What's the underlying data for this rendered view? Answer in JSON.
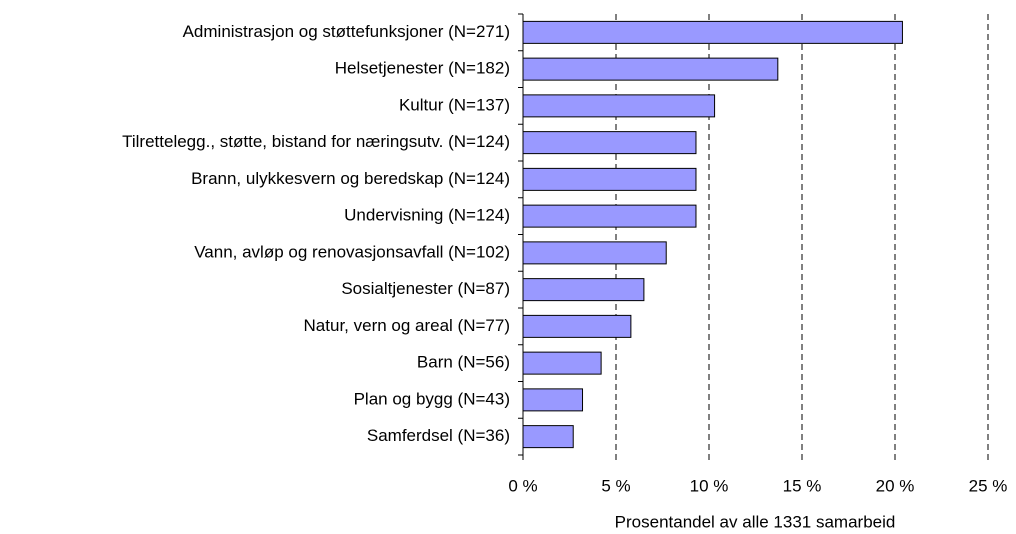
{
  "chart_data": {
    "type": "barh",
    "x_label": "Prosentandel av alle 1331 samarbeid",
    "categories": [
      "Administrasjon og støttefunksjoner (N=271)",
      "Helsetjenester (N=182)",
      "Kultur (N=137)",
      "Tilrettelegg., støtte, bistand for næringsutv. (N=124)",
      "Brann, ulykkesvern og beredskap (N=124)",
      "Undervisning (N=124)",
      "Vann, avløp og renovasjonsavfall (N=102)",
      "Sosialtjenester (N=87)",
      "Natur, vern og areal (N=77)",
      "Barn (N=56)",
      "Plan og bygg (N=43)",
      "Samferdsel (N=36)"
    ],
    "values": [
      20.4,
      13.7,
      10.3,
      9.3,
      9.3,
      9.3,
      7.7,
      6.5,
      5.8,
      4.2,
      3.2,
      2.7
    ],
    "color": "#9999ff",
    "xlim": [
      0,
      25
    ],
    "xticks": [
      {
        "value": 0,
        "label": "0 %"
      },
      {
        "value": 5,
        "label": "5 %"
      },
      {
        "value": 10,
        "label": "10 %"
      },
      {
        "value": 15,
        "label": "15 %"
      },
      {
        "value": 20,
        "label": "20 %"
      },
      {
        "value": 25,
        "label": "25 %"
      }
    ],
    "grid": true
  }
}
